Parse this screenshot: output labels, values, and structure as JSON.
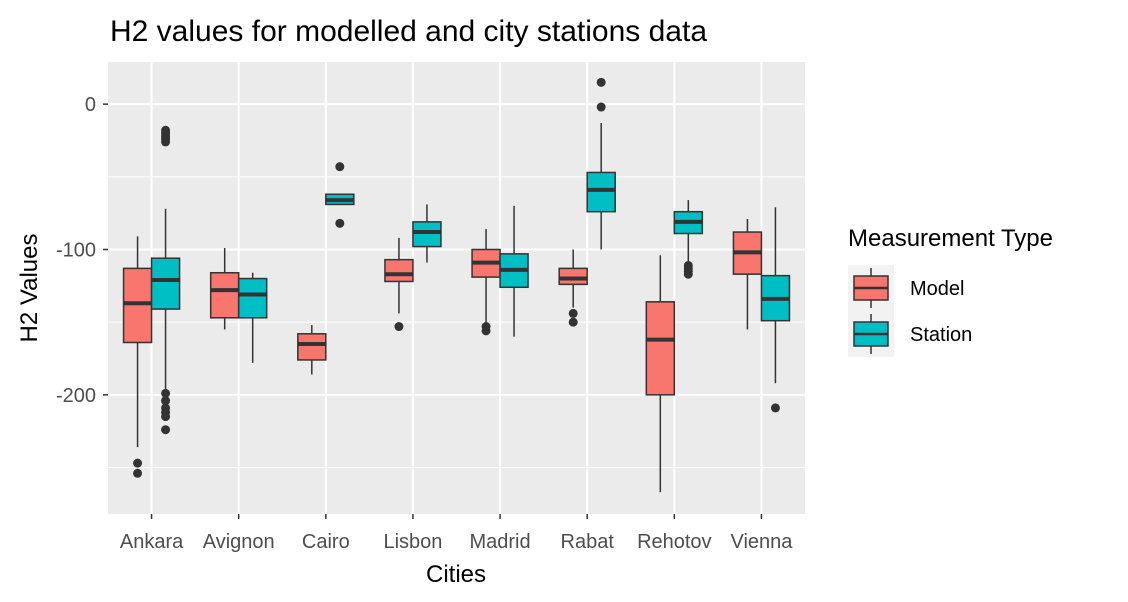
{
  "chart_data": {
    "type": "boxplot",
    "title": "H2 values for modelled and city stations data",
    "xlabel": "Cities",
    "ylabel": "H2 Values",
    "ylim": [
      -282,
      29
    ],
    "yticks": [
      0,
      -100,
      -200
    ],
    "yticklabels": [
      "0",
      "-100",
      "-200"
    ],
    "grid": true,
    "legend": {
      "title": "Measurement Type",
      "position": "right"
    },
    "categories": [
      "Ankara",
      "Avignon",
      "Cairo",
      "Lisbon",
      "Madrid",
      "Rabat",
      "Rehotov",
      "Vienna"
    ],
    "series": [
      {
        "name": "Model",
        "color": "#f8766d",
        "boxes": [
          {
            "low": -236,
            "q1": -164,
            "median": -137,
            "q3": -113,
            "high": -91,
            "outliers": [
              -247,
              -254
            ]
          },
          {
            "low": -155,
            "q1": -147,
            "median": -128,
            "q3": -116,
            "high": -99,
            "outliers": []
          },
          {
            "low": -186,
            "q1": -176,
            "median": -165,
            "q3": -158,
            "high": -152,
            "outliers": []
          },
          {
            "low": -144,
            "q1": -122,
            "median": -117,
            "q3": -107,
            "high": -92,
            "outliers": [
              -153
            ]
          },
          {
            "low": -152,
            "q1": -119,
            "median": -109,
            "q3": -100,
            "high": -86,
            "outliers": [
              -153,
              -156
            ]
          },
          {
            "low": -140,
            "q1": -124,
            "median": -120,
            "q3": -113,
            "high": -100,
            "outliers": [
              -144,
              -150
            ]
          },
          {
            "low": -267,
            "q1": -200,
            "median": -162,
            "q3": -136,
            "high": -104,
            "outliers": []
          },
          {
            "low": -155,
            "q1": -117,
            "median": -102,
            "q3": -88,
            "high": -79,
            "outliers": []
          }
        ]
      },
      {
        "name": "Station",
        "color": "#00bfc4",
        "boxes": [
          {
            "low": -196,
            "q1": -141,
            "median": -121,
            "q3": -106,
            "high": -72,
            "outliers": [
              -18,
              -20,
              -22,
              -24,
              -26,
              -199,
              -204,
              -209,
              -212,
              -215,
              -224
            ]
          },
          {
            "low": -178,
            "q1": -147,
            "median": -131,
            "q3": -120,
            "high": -116,
            "outliers": []
          },
          {
            "low": -69,
            "q1": -69,
            "median": -66,
            "q3": -62,
            "high": -62,
            "outliers": [
              -43,
              -82
            ]
          },
          {
            "low": -109,
            "q1": -98,
            "median": -88,
            "q3": -81,
            "high": -69,
            "outliers": []
          },
          {
            "low": -160,
            "q1": -126,
            "median": -114,
            "q3": -103,
            "high": -70,
            "outliers": []
          },
          {
            "low": -100,
            "q1": -74,
            "median": -59,
            "q3": -47,
            "high": -13,
            "outliers": [
              -2,
              15
            ]
          },
          {
            "low": -110,
            "q1": -89,
            "median": -81,
            "q3": -74,
            "high": -66,
            "outliers": [
              -111,
              -113,
              -115,
              -117
            ]
          },
          {
            "low": -192,
            "q1": -149,
            "median": -134,
            "q3": -118,
            "high": -71,
            "outliers": [
              -209
            ]
          }
        ]
      }
    ]
  }
}
